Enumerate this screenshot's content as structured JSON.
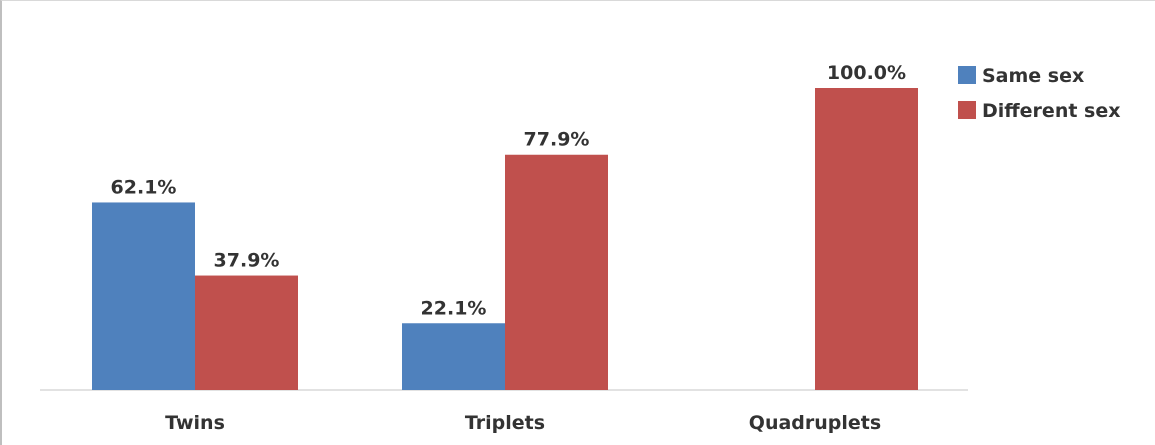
{
  "chart_data": {
    "type": "bar",
    "categories": [
      "Twins",
      "Triplets",
      "Quadruplets"
    ],
    "series": [
      {
        "name": "Same sex",
        "color": "#4f81bd",
        "values": [
          62.1,
          22.1,
          null
        ],
        "labels": [
          "62.1%",
          "22.1%",
          ""
        ]
      },
      {
        "name": "Different sex",
        "color": "#c0504d",
        "values": [
          37.9,
          77.9,
          100.0
        ],
        "labels": [
          "37.9%",
          "77.9%",
          "100.0%"
        ]
      }
    ],
    "ylim": [
      0,
      100
    ],
    "grid": false,
    "legend": "right"
  }
}
